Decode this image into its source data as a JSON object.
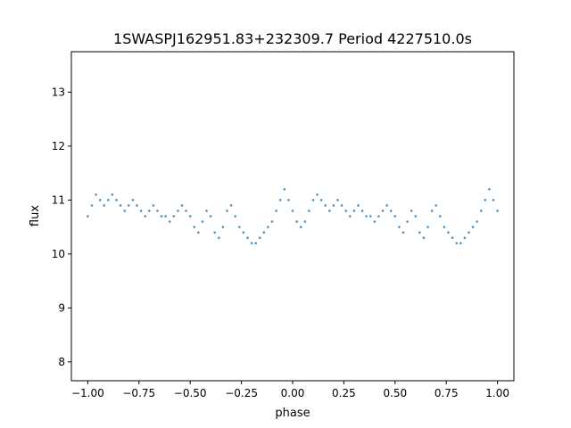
{
  "chart_data": {
    "type": "scatter",
    "title": "1SWASPJ162951.83+232309.7 Period 4227510.0s",
    "xlabel": "phase",
    "ylabel": "flux",
    "xlim": [
      -1.08,
      1.08
    ],
    "ylim": [
      7.65,
      13.75
    ],
    "x_ticks": [
      -1.0,
      -0.75,
      -0.5,
      -0.25,
      0.0,
      0.25,
      0.5,
      0.75,
      1.0
    ],
    "x_tick_labels": [
      "−1.00",
      "−0.75",
      "−0.50",
      "−0.25",
      "0.00",
      "0.25",
      "0.50",
      "0.75",
      "1.00"
    ],
    "y_ticks": [
      8,
      9,
      10,
      11,
      12,
      13
    ],
    "y_tick_labels": [
      "8",
      "9",
      "10",
      "11",
      "12",
      "13"
    ],
    "grid": false,
    "legend": "none",
    "marker_color": "#1f77b4",
    "series": [
      {
        "x": [
          -1.0,
          -0.98,
          -0.96,
          -0.94,
          -0.92,
          -0.9,
          -0.88,
          -0.86,
          -0.84,
          -0.82,
          -0.8,
          -0.78,
          -0.76,
          -0.74,
          -0.72,
          -0.7,
          -0.68,
          -0.66,
          -0.64,
          -0.62,
          -0.6,
          -0.58,
          -0.56,
          -0.54,
          -0.52,
          -0.5,
          -0.48,
          -0.46,
          -0.44,
          -0.42,
          -0.4,
          -0.38,
          -0.36,
          -0.34,
          -0.32,
          -0.3,
          -0.28,
          -0.26,
          -0.24,
          -0.22,
          -0.2,
          -0.18,
          -0.16,
          -0.14,
          -0.12,
          -0.1,
          -0.08,
          -0.06,
          -0.04,
          -0.02,
          0.0,
          0.02,
          0.04,
          0.06,
          0.08,
          0.1,
          0.12,
          0.14,
          0.16,
          0.18,
          0.2,
          0.22,
          0.24,
          0.26,
          0.28,
          0.3,
          0.32,
          0.34,
          0.36,
          0.38,
          0.4,
          0.42,
          0.44,
          0.46,
          0.48,
          0.5,
          0.52,
          0.54,
          0.56,
          0.58,
          0.6,
          0.62,
          0.64,
          0.66,
          0.68,
          0.7,
          0.72,
          0.74,
          0.76,
          0.78,
          0.8,
          0.82,
          0.84,
          0.86,
          0.88,
          0.9,
          0.92,
          0.94,
          0.96,
          0.98,
          1.0
        ],
        "y": [
          10.7,
          10.9,
          11.1,
          11.0,
          10.9,
          11.0,
          11.1,
          11.0,
          10.9,
          10.8,
          10.9,
          11.0,
          10.9,
          10.8,
          10.7,
          10.8,
          10.9,
          10.8,
          10.7,
          10.7,
          10.6,
          10.7,
          10.8,
          10.9,
          10.8,
          10.7,
          10.5,
          10.4,
          10.6,
          10.8,
          10.7,
          10.4,
          10.3,
          10.5,
          10.8,
          10.9,
          10.7,
          10.5,
          10.4,
          10.3,
          10.2,
          10.2,
          10.3,
          10.4,
          10.5,
          10.6,
          10.8,
          11.0,
          11.2,
          11.0,
          10.8,
          10.6,
          10.5,
          10.6,
          10.8,
          11.0,
          11.1,
          11.0,
          10.9,
          10.8,
          10.9,
          11.0,
          10.9,
          10.8,
          10.7,
          10.8,
          10.9,
          10.8,
          10.7,
          10.7,
          10.6,
          10.7,
          10.8,
          10.9,
          10.8,
          10.7,
          10.5,
          10.4,
          10.6,
          10.8,
          10.7,
          10.4,
          10.3,
          10.5,
          10.8,
          10.9,
          10.7,
          10.5,
          10.4,
          10.3,
          10.2,
          10.2,
          10.3,
          10.4,
          10.5,
          10.6,
          10.8,
          11.0,
          11.2,
          11.0,
          10.8
        ]
      }
    ]
  }
}
